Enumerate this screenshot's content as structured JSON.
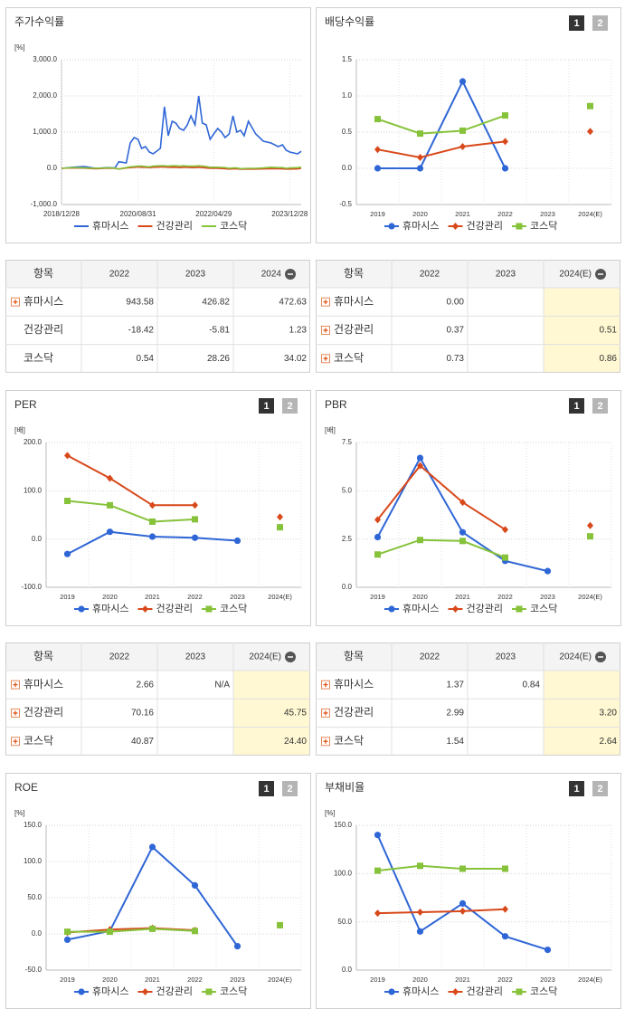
{
  "chart_data": [
    {
      "type": "line",
      "title": "주가수익률",
      "unit": "[%]",
      "x": [
        "2018/12/28",
        "2019/03/29",
        "2019/06/28",
        "2019/09/30",
        "2019/12/30",
        "2020/02/28",
        "2020/03/31",
        "2020/05/29",
        "2020/06/30",
        "2020/07/31",
        "2020/08/31",
        "2020/09/29",
        "2020/10/30",
        "2020/11/30",
        "2020/12/30",
        "2021/02/26",
        "2021/03/31",
        "2021/04/30",
        "2021/05/31",
        "2021/06/30",
        "2021/07/30",
        "2021/08/31",
        "2021/09/30",
        "2021/10/29",
        "2021/11/30",
        "2021/12/30",
        "2022/01/28",
        "2022/02/28",
        "2022/03/31",
        "2022/04/29",
        "2022/05/31",
        "2022/06/30",
        "2022/07/29",
        "2022/08/31",
        "2022/09/30",
        "2022/10/31",
        "2022/11/30",
        "2022/12/29",
        "2023/01/31",
        "2023/03/31",
        "2023/05/31",
        "2023/07/31",
        "2023/09/27",
        "2023/10/31",
        "2023/11/30",
        "2023/12/28",
        "2024/02/29",
        "2024/03/29"
      ],
      "xlim": [
        "2018/12/28",
        "2024/03/29"
      ],
      "xticks": [
        "2018/12/28",
        "2020/08/31",
        "2022/04/29",
        "2023/12/28"
      ],
      "ylim": [
        -1000,
        3000
      ],
      "yticks": [
        {
          "value": -1000,
          "label": "-1,000.0"
        },
        {
          "value": 0,
          "label": "0.0"
        },
        {
          "value": 1000,
          "label": "1,000.0"
        },
        {
          "value": 2000,
          "label": "2,000.0"
        },
        {
          "value": 3000,
          "label": "3,000.0"
        }
      ],
      "grid": true,
      "legend": "bottom",
      "series": [
        {
          "name": "휴마시스",
          "color": "#2f66d6",
          "values": [
            0,
            30,
            50,
            0,
            20,
            10,
            180,
            150,
            700,
            850,
            800,
            550,
            600,
            450,
            400,
            550,
            1700,
            900,
            1300,
            1250,
            1100,
            1050,
            1200,
            1450,
            1200,
            2000,
            1250,
            1200,
            800,
            950,
            1100,
            1000,
            850,
            950,
            1450,
            1000,
            1050,
            900,
            1300,
            950,
            750,
            700,
            600,
            650,
            500,
            450,
            400,
            470
          ]
        },
        {
          "name": "건강관리",
          "color": "#d8481a",
          "values": [
            0,
            10,
            5,
            -10,
            5,
            0,
            -20,
            10,
            20,
            30,
            40,
            30,
            30,
            20,
            30,
            40,
            40,
            30,
            30,
            30,
            20,
            30,
            30,
            20,
            20,
            30,
            20,
            10,
            0,
            0,
            0,
            -5,
            -10,
            -20,
            -15,
            -15,
            -25,
            -20,
            -20,
            -20,
            -15,
            -10,
            -10,
            -15,
            -20,
            -20,
            -15,
            0
          ]
        },
        {
          "name": "코스닥",
          "color": "#86c23a",
          "values": [
            0,
            20,
            10,
            0,
            15,
            5,
            -20,
            20,
            40,
            50,
            60,
            60,
            50,
            40,
            60,
            70,
            70,
            60,
            70,
            70,
            60,
            70,
            60,
            60,
            60,
            70,
            60,
            50,
            30,
            30,
            30,
            25,
            20,
            0,
            10,
            10,
            -10,
            -5,
            0,
            0,
            10,
            30,
            20,
            20,
            0,
            10,
            20,
            30
          ]
        }
      ]
    },
    {
      "type": "line",
      "title": "배당수익률",
      "page_buttons": [
        "1",
        "2"
      ],
      "categories": [
        "2019",
        "2020",
        "2021",
        "2022",
        "2023",
        "2024(E)"
      ],
      "ylim": [
        -0.5,
        1.5
      ],
      "yticks": [
        -0.5,
        {
          "value": 0,
          "label": "0.0"
        },
        0.5,
        {
          "value": 1,
          "label": "1.0"
        },
        1.5
      ],
      "grid": true,
      "legend": "bottom",
      "series": [
        {
          "name": "휴마시스",
          "color": "#2f66d6",
          "marker": "circle",
          "values": [
            0,
            0,
            1.2,
            0,
            null,
            null
          ]
        },
        {
          "name": "건강관리",
          "color": "#d8481a",
          "marker": "diamond",
          "values": [
            0.26,
            0.15,
            0.3,
            0.37,
            null,
            0.51
          ]
        },
        {
          "name": "코스닥",
          "color": "#86c23a",
          "marker": "square",
          "values": [
            0.68,
            0.48,
            0.52,
            0.73,
            null,
            0.86
          ]
        }
      ]
    },
    {
      "type": "line",
      "title": "PER",
      "unit": "[배]",
      "page_buttons": [
        "1",
        "2"
      ],
      "categories": [
        "2019",
        "2020",
        "2021",
        "2022",
        "2023",
        "2024(E)"
      ],
      "ylim": [
        -100,
        200
      ],
      "yticks": [
        {
          "value": -100,
          "label": "-100.0"
        },
        {
          "value": 0,
          "label": "0.0"
        },
        {
          "value": 100,
          "label": "100.0"
        },
        {
          "value": 200,
          "label": "200.0"
        }
      ],
      "grid": true,
      "legend": "bottom",
      "series": [
        {
          "name": "휴마시스",
          "color": "#2f66d6",
          "marker": "circle",
          "values": [
            -31,
            15,
            5,
            2.66,
            -3.5,
            null
          ]
        },
        {
          "name": "건강관리",
          "color": "#d8481a",
          "marker": "diamond",
          "values": [
            173,
            126,
            70,
            70.16,
            null,
            45.75
          ]
        },
        {
          "name": "코스닥",
          "color": "#86c23a",
          "marker": "square",
          "values": [
            79,
            70,
            36,
            40.87,
            null,
            24.4
          ]
        }
      ]
    },
    {
      "type": "line",
      "title": "PBR",
      "unit": "[배]",
      "page_buttons": [
        "1",
        "2"
      ],
      "categories": [
        "2019",
        "2020",
        "2021",
        "2022",
        "2023",
        "2024(E)"
      ],
      "ylim": [
        0,
        7.5
      ],
      "yticks": [
        {
          "value": 0,
          "label": "0.0"
        },
        2.5,
        {
          "value": 5,
          "label": "5.0"
        },
        7.5
      ],
      "grid": true,
      "legend": "bottom",
      "series": [
        {
          "name": "휴마시스",
          "color": "#2f66d6",
          "marker": "circle",
          "values": [
            2.6,
            6.7,
            2.85,
            1.37,
            0.84,
            null
          ]
        },
        {
          "name": "건강관리",
          "color": "#d8481a",
          "marker": "diamond",
          "values": [
            3.5,
            6.3,
            4.4,
            2.99,
            null,
            3.2
          ]
        },
        {
          "name": "코스닥",
          "color": "#86c23a",
          "marker": "square",
          "values": [
            1.7,
            2.45,
            2.4,
            1.54,
            null,
            2.64
          ]
        }
      ]
    },
    {
      "type": "line",
      "title": "ROE",
      "unit": "[%]",
      "page_buttons": [
        "1",
        "2"
      ],
      "categories": [
        "2019",
        "2020",
        "2021",
        "2022",
        "2023",
        "2024(E)"
      ],
      "ylim": [
        -50,
        150
      ],
      "yticks": [
        {
          "value": -50,
          "label": "-50.0"
        },
        {
          "value": 0,
          "label": "0.0"
        },
        {
          "value": 50,
          "label": "50.0"
        },
        {
          "value": 100,
          "label": "100.0"
        },
        {
          "value": 150,
          "label": "150.0"
        }
      ],
      "grid": true,
      "legend": "bottom",
      "series": [
        {
          "name": "휴마시스",
          "color": "#2f66d6",
          "marker": "circle",
          "values": [
            -8,
            4,
            120,
            67,
            -17,
            null
          ]
        },
        {
          "name": "건강관리",
          "color": "#d8481a",
          "marker": "diamond",
          "values": [
            2,
            6,
            8,
            5,
            null,
            null
          ]
        },
        {
          "name": "코스닥",
          "color": "#86c23a",
          "marker": "square",
          "values": [
            3,
            3,
            7,
            4,
            null,
            12
          ]
        }
      ]
    },
    {
      "type": "line",
      "title": "부채비율",
      "unit": "[%]",
      "page_buttons": [
        "1",
        "2"
      ],
      "categories": [
        "2019",
        "2020",
        "2021",
        "2022",
        "2023",
        "2024(E)"
      ],
      "ylim": [
        0,
        150
      ],
      "yticks": [
        {
          "value": 0,
          "label": "0.0"
        },
        {
          "value": 50,
          "label": "50.0"
        },
        {
          "value": 100,
          "label": "100.0"
        },
        {
          "value": 150,
          "label": "150.0"
        }
      ],
      "grid": true,
      "legend": "bottom",
      "series": [
        {
          "name": "휴마시스",
          "color": "#2f66d6",
          "marker": "circle",
          "values": [
            140,
            40,
            69,
            35,
            21,
            null
          ]
        },
        {
          "name": "건강관리",
          "color": "#d8481a",
          "marker": "diamond",
          "values": [
            59,
            60,
            61,
            63,
            null,
            null
          ]
        },
        {
          "name": "코스닥",
          "color": "#86c23a",
          "marker": "square",
          "values": [
            103,
            108,
            105,
            105,
            null,
            null
          ]
        }
      ]
    }
  ],
  "tables": [
    {
      "columns": [
        "항목",
        "2022",
        "2023",
        "2024"
      ],
      "highlight_last": false,
      "rows": [
        {
          "name": "휴마시스",
          "expand": true,
          "values": [
            "943.58",
            "426.82",
            "472.63"
          ]
        },
        {
          "name": "건강관리",
          "expand": false,
          "values": [
            "-18.42",
            "-5.81",
            "1.23"
          ]
        },
        {
          "name": "코스닥",
          "expand": false,
          "values": [
            "0.54",
            "28.26",
            "34.02"
          ]
        }
      ]
    },
    {
      "columns": [
        "항목",
        "2022",
        "2023",
        "2024(E)"
      ],
      "highlight_last": true,
      "rows": [
        {
          "name": "휴마시스",
          "expand": true,
          "values": [
            "0.00",
            null,
            null
          ]
        },
        {
          "name": "건강관리",
          "expand": true,
          "values": [
            "0.37",
            null,
            "0.51"
          ]
        },
        {
          "name": "코스닥",
          "expand": true,
          "values": [
            "0.73",
            null,
            "0.86"
          ]
        }
      ]
    },
    {
      "columns": [
        "항목",
        "2022",
        "2023",
        "2024(E)"
      ],
      "highlight_last": true,
      "rows": [
        {
          "name": "휴마시스",
          "expand": true,
          "values": [
            "2.66",
            "N/A",
            null
          ]
        },
        {
          "name": "건강관리",
          "expand": true,
          "values": [
            "70.16",
            null,
            "45.75"
          ]
        },
        {
          "name": "코스닥",
          "expand": true,
          "values": [
            "40.87",
            null,
            "24.40"
          ]
        }
      ]
    },
    {
      "columns": [
        "항목",
        "2022",
        "2023",
        "2024(E)"
      ],
      "highlight_last": true,
      "rows": [
        {
          "name": "휴마시스",
          "expand": true,
          "values": [
            "1.37",
            "0.84",
            null
          ]
        },
        {
          "name": "건강관리",
          "expand": true,
          "values": [
            "2.99",
            null,
            "3.20"
          ]
        },
        {
          "name": "코스닥",
          "expand": true,
          "values": [
            "1.54",
            null,
            "2.64"
          ]
        }
      ]
    }
  ]
}
